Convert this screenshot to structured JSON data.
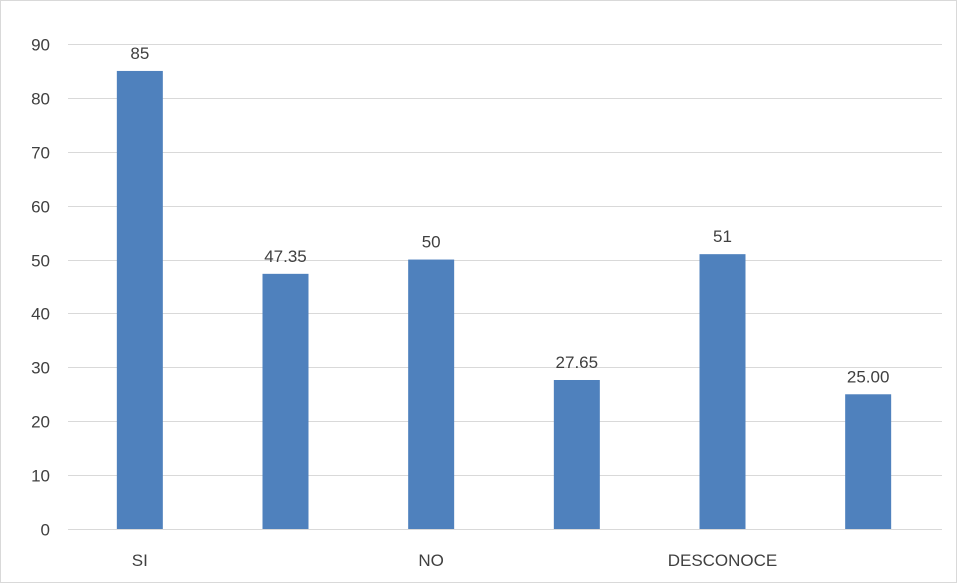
{
  "chart_data": {
    "type": "bar",
    "categories": [
      "SI",
      "",
      "NO",
      "",
      "DESCONOCE",
      ""
    ],
    "values": [
      85,
      47.35,
      50,
      27.65,
      51,
      25.0
    ],
    "data_labels": [
      "85",
      "47.35",
      "50",
      "27.65",
      "51",
      "25.00"
    ],
    "ylim": [
      0,
      90
    ],
    "yticks": [
      0,
      10,
      20,
      30,
      40,
      50,
      60,
      70,
      80,
      90
    ],
    "grid": true,
    "legend": "none"
  },
  "colors": {
    "bar": "#4f81bd",
    "grid": "#d9d9d9",
    "text": "#404040"
  }
}
